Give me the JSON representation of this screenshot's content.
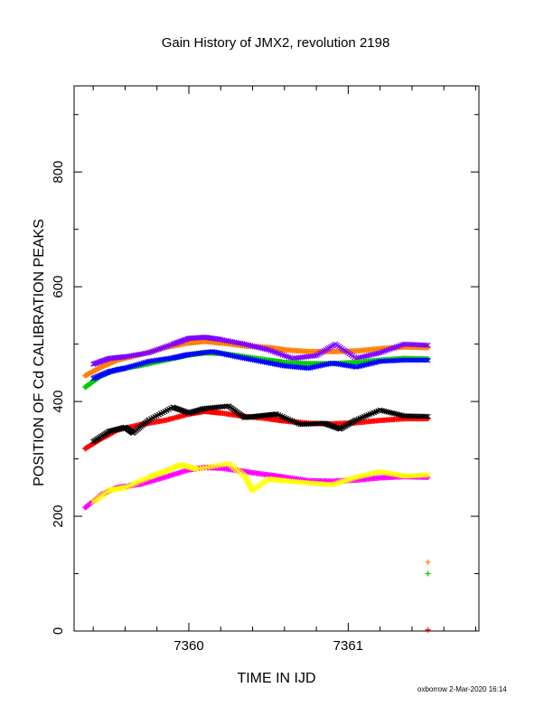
{
  "chart_data": {
    "type": "scatter",
    "title": "Gain History of JMX2, revolution 2198",
    "xlabel": "TIME IN IJD",
    "ylabel": "POSITION OF Cd CALIBRATION PEAKS",
    "xlim": [
      7359.28,
      7361.82
    ],
    "ylim": [
      0,
      950
    ],
    "x_ticks": [
      7360,
      7361
    ],
    "y_ticks": [
      0,
      200,
      400,
      600,
      800
    ],
    "grid": false,
    "series": [
      {
        "color": "#ff8000",
        "role": "fit",
        "points": [
          [
            7359.35,
            445
          ],
          [
            7359.45,
            460
          ],
          [
            7359.55,
            472
          ],
          [
            7359.7,
            482
          ],
          [
            7359.85,
            494
          ],
          [
            7360.0,
            502
          ],
          [
            7360.1,
            505
          ],
          [
            7360.2,
            502
          ],
          [
            7360.35,
            497
          ],
          [
            7360.5,
            494
          ],
          [
            7360.6,
            490
          ],
          [
            7360.75,
            487
          ],
          [
            7360.9,
            487
          ],
          [
            7361.05,
            488
          ],
          [
            7361.2,
            492
          ],
          [
            7361.35,
            495
          ],
          [
            7361.5,
            494
          ]
        ]
      },
      {
        "color": "#8000ff",
        "role": "measured",
        "points": [
          [
            7359.4,
            465
          ],
          [
            7359.5,
            475
          ],
          [
            7359.6,
            478
          ],
          [
            7359.75,
            485
          ],
          [
            7359.9,
            500
          ],
          [
            7360.0,
            510
          ],
          [
            7360.1,
            512
          ],
          [
            7360.2,
            508
          ],
          [
            7360.35,
            500
          ],
          [
            7360.5,
            490
          ],
          [
            7360.65,
            475
          ],
          [
            7360.8,
            480
          ],
          [
            7360.92,
            500
          ],
          [
            7361.05,
            475
          ],
          [
            7361.2,
            485
          ],
          [
            7361.35,
            500
          ],
          [
            7361.5,
            498
          ]
        ]
      },
      {
        "color": "#00cc00",
        "role": "fit",
        "points": [
          [
            7359.35,
            425
          ],
          [
            7359.45,
            445
          ],
          [
            7359.55,
            456
          ],
          [
            7359.7,
            463
          ],
          [
            7359.85,
            472
          ],
          [
            7360.0,
            481
          ],
          [
            7360.1,
            485
          ],
          [
            7360.2,
            484
          ],
          [
            7360.35,
            478
          ],
          [
            7360.5,
            472
          ],
          [
            7360.6,
            468
          ],
          [
            7360.75,
            466
          ],
          [
            7360.9,
            466
          ],
          [
            7361.05,
            468
          ],
          [
            7361.2,
            472
          ],
          [
            7361.35,
            475
          ],
          [
            7361.5,
            474
          ]
        ]
      },
      {
        "color": "#0000ff",
        "role": "measured",
        "points": [
          [
            7359.4,
            440
          ],
          [
            7359.5,
            452
          ],
          [
            7359.6,
            458
          ],
          [
            7359.75,
            470
          ],
          [
            7359.9,
            476
          ],
          [
            7360.0,
            482
          ],
          [
            7360.15,
            487
          ],
          [
            7360.3,
            478
          ],
          [
            7360.45,
            470
          ],
          [
            7360.6,
            462
          ],
          [
            7360.75,
            458
          ],
          [
            7360.9,
            467
          ],
          [
            7361.05,
            460
          ],
          [
            7361.2,
            470
          ],
          [
            7361.35,
            472
          ],
          [
            7361.5,
            472
          ]
        ]
      },
      {
        "color": "#ff0000",
        "role": "fit",
        "points": [
          [
            7359.35,
            318
          ],
          [
            7359.45,
            335
          ],
          [
            7359.55,
            350
          ],
          [
            7359.7,
            360
          ],
          [
            7359.85,
            367
          ],
          [
            7360.0,
            378
          ],
          [
            7360.1,
            383
          ],
          [
            7360.2,
            380
          ],
          [
            7360.35,
            374
          ],
          [
            7360.5,
            370
          ],
          [
            7360.6,
            366
          ],
          [
            7360.75,
            362
          ],
          [
            7360.9,
            361
          ],
          [
            7361.05,
            363
          ],
          [
            7361.2,
            367
          ],
          [
            7361.35,
            370
          ],
          [
            7361.5,
            370
          ]
        ]
      },
      {
        "color": "#000000",
        "role": "measured",
        "points": [
          [
            7359.4,
            330
          ],
          [
            7359.5,
            348
          ],
          [
            7359.6,
            355
          ],
          [
            7359.65,
            345
          ],
          [
            7359.75,
            368
          ],
          [
            7359.9,
            390
          ],
          [
            7360.0,
            380
          ],
          [
            7360.1,
            388
          ],
          [
            7360.25,
            392
          ],
          [
            7360.35,
            372
          ],
          [
            7360.45,
            375
          ],
          [
            7360.55,
            378
          ],
          [
            7360.7,
            360
          ],
          [
            7360.85,
            362
          ],
          [
            7360.95,
            352
          ],
          [
            7361.05,
            368
          ],
          [
            7361.2,
            385
          ],
          [
            7361.35,
            375
          ],
          [
            7361.5,
            374
          ]
        ]
      },
      {
        "color": "#ff00ff",
        "role": "fit",
        "points": [
          [
            7359.35,
            215
          ],
          [
            7359.45,
            238
          ],
          [
            7359.55,
            250
          ],
          [
            7359.7,
            256
          ],
          [
            7359.85,
            268
          ],
          [
            7360.0,
            281
          ],
          [
            7360.1,
            285
          ],
          [
            7360.2,
            284
          ],
          [
            7360.35,
            278
          ],
          [
            7360.5,
            272
          ],
          [
            7360.6,
            268
          ],
          [
            7360.75,
            262
          ],
          [
            7360.9,
            261
          ],
          [
            7361.05,
            263
          ],
          [
            7361.2,
            267
          ],
          [
            7361.35,
            269
          ],
          [
            7361.5,
            268
          ]
        ]
      },
      {
        "color": "#ffff00",
        "role": "measured",
        "points": [
          [
            7359.4,
            225
          ],
          [
            7359.5,
            245
          ],
          [
            7359.6,
            250
          ],
          [
            7359.75,
            268
          ],
          [
            7359.85,
            278
          ],
          [
            7359.95,
            290
          ],
          [
            7360.05,
            282
          ],
          [
            7360.25,
            292
          ],
          [
            7360.35,
            270
          ],
          [
            7360.4,
            245
          ],
          [
            7360.5,
            265
          ],
          [
            7360.6,
            262
          ],
          [
            7360.75,
            258
          ],
          [
            7360.9,
            255
          ],
          [
            7361.05,
            268
          ],
          [
            7361.2,
            278
          ],
          [
            7361.35,
            270
          ],
          [
            7361.5,
            272
          ]
        ]
      },
      {
        "color": "#ff8000",
        "role": "extra",
        "points": [
          [
            7361.5,
            120
          ]
        ]
      },
      {
        "color": "#00cc00",
        "role": "extra",
        "points": [
          [
            7361.5,
            100
          ]
        ]
      },
      {
        "color": "#ff0000",
        "role": "extra",
        "points": [
          [
            7361.5,
            2
          ]
        ]
      }
    ]
  },
  "footer": {
    "text": "oxborrow  2-Mar-2020 16:14"
  }
}
